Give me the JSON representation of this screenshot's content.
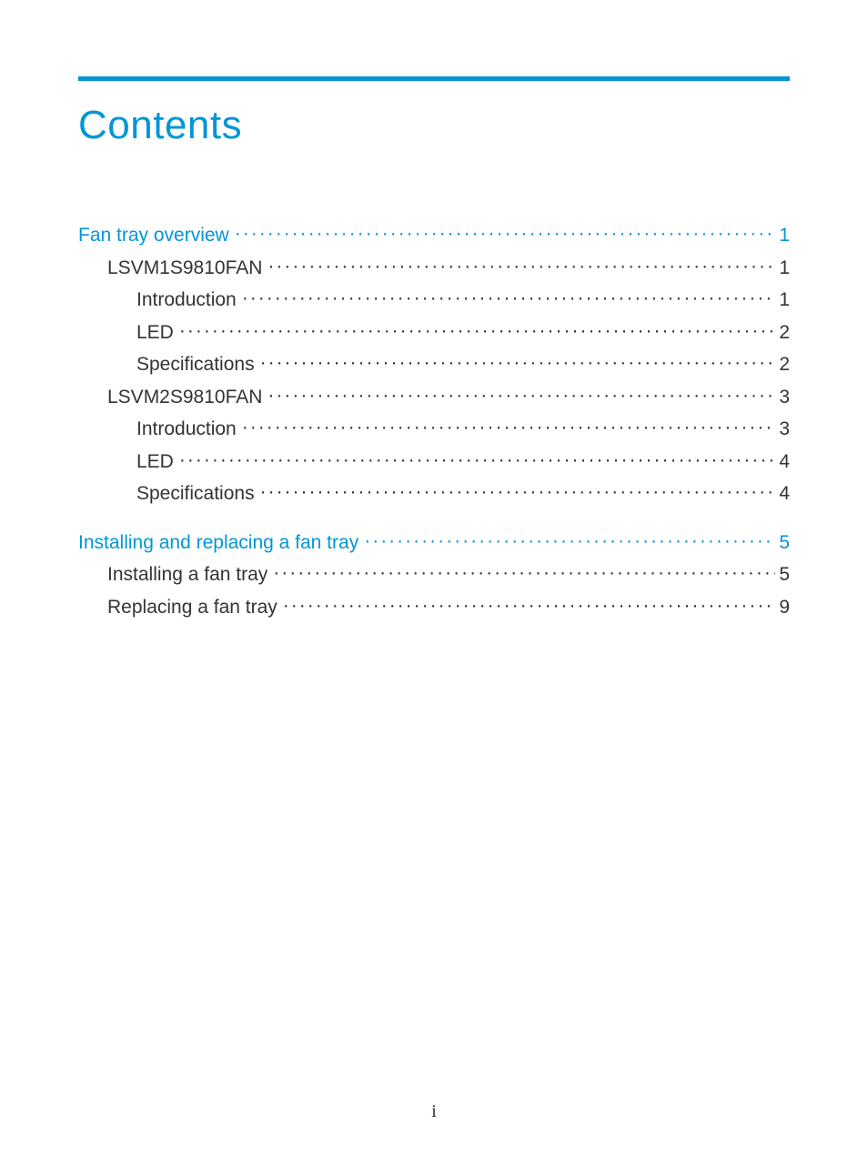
{
  "colors": {
    "accent": "#0096d6",
    "text": "#333333",
    "background": "#ffffff"
  },
  "typography": {
    "heading_fontsize": 44,
    "body_fontsize": 21,
    "font_family": "Century Gothic"
  },
  "heading": "Contents",
  "page_label": "i",
  "toc": [
    {
      "level": 1,
      "label": "Fan tray overview",
      "page": "1"
    },
    {
      "level": 2,
      "label": "LSVM1S9810FAN",
      "page": "1"
    },
    {
      "level": 3,
      "label": "Introduction",
      "page": "1"
    },
    {
      "level": 3,
      "label": "LED",
      "page": "2"
    },
    {
      "level": 3,
      "label": "Specifications",
      "page": "2"
    },
    {
      "level": 2,
      "label": "LSVM2S9810FAN",
      "page": "3"
    },
    {
      "level": 3,
      "label": "Introduction",
      "page": "3"
    },
    {
      "level": 3,
      "label": "LED",
      "page": "4"
    },
    {
      "level": 3,
      "label": "Specifications",
      "page": "4"
    },
    {
      "level": 0,
      "gap": true
    },
    {
      "level": 1,
      "label": "Installing and replacing a fan tray",
      "page": "5"
    },
    {
      "level": 2,
      "label": "Installing a fan tray",
      "page": "5"
    },
    {
      "level": 2,
      "label": "Replacing a fan tray",
      "page": "9"
    }
  ]
}
